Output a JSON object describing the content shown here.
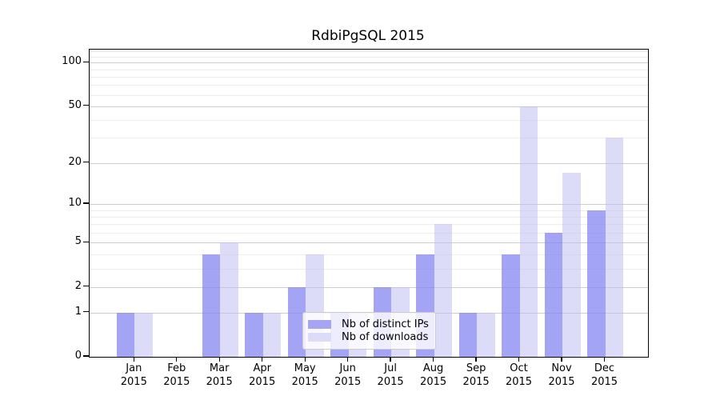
{
  "title": "RdbiPgSQL 2015",
  "chart_data": {
    "type": "bar",
    "title": "RdbiPgSQL 2015",
    "categories": [
      "Jan",
      "Feb",
      "Mar",
      "Apr",
      "May",
      "Jun",
      "Jul",
      "Aug",
      "Sep",
      "Oct",
      "Nov",
      "Dec"
    ],
    "category_year": "2015",
    "series": [
      {
        "name": "Nb of distinct IPs",
        "values": [
          1,
          0,
          4,
          1,
          2,
          1,
          2,
          4,
          1,
          4,
          6,
          9
        ]
      },
      {
        "name": "Nb of downloads",
        "values": [
          1,
          0,
          5,
          1,
          4,
          1,
          2,
          7,
          1,
          50,
          17,
          30
        ]
      }
    ],
    "xlabel": "",
    "ylabel": "",
    "yscale": "log1p",
    "ylim": [
      0,
      123
    ],
    "yticks": [
      0,
      1,
      2,
      5,
      10,
      20,
      50,
      100
    ],
    "minor_gridlines": [
      3,
      4,
      6,
      7,
      8,
      9,
      30,
      40,
      60,
      70,
      80,
      90,
      110,
      120
    ],
    "grid": "on",
    "legend_position": "lower center",
    "colors": {
      "ip_bar": "rgba(134, 134, 240, 0.75)",
      "dl_bar": "rgba(190, 190, 243, 0.54)",
      "ip_bar_solid": "#a5a5f4",
      "dl_bar_solid": "#dcdcf8",
      "grid_major": "#cdcdcd",
      "grid_minor": "#ededed",
      "axis": "#000000",
      "legend_border": "#cccccc"
    }
  }
}
